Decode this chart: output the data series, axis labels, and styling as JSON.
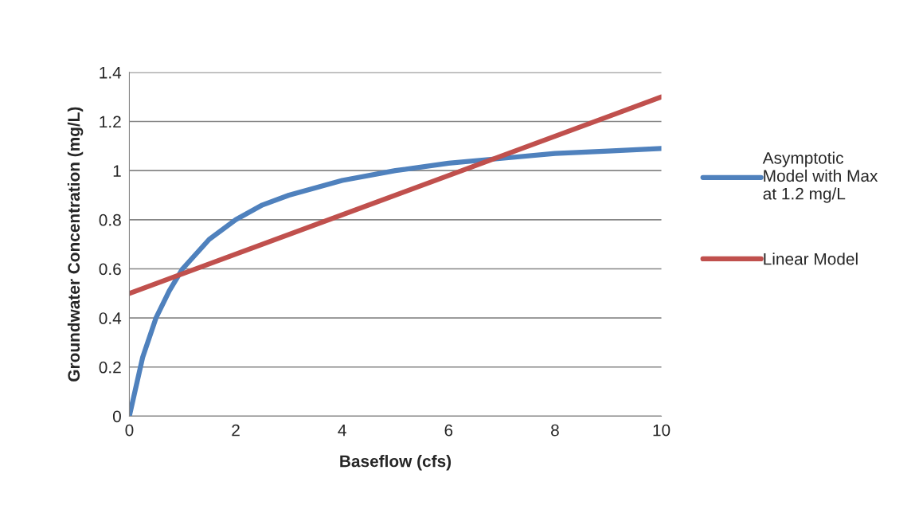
{
  "chart_data": {
    "type": "line",
    "xlabel": "Baseflow (cfs)",
    "ylabel": "Groundwater Concentration (mg/L)",
    "x": [
      0,
      0.25,
      0.5,
      0.75,
      1,
      1.5,
      2,
      2.5,
      3,
      4,
      5,
      6,
      7,
      8,
      9,
      10
    ],
    "series": [
      {
        "name": "Asymptotic\nModel with Max\nat 1.2 mg/L",
        "color": "#4f81bd",
        "values": [
          0,
          0.24,
          0.4,
          0.51,
          0.6,
          0.72,
          0.8,
          0.86,
          0.9,
          0.96,
          1.0,
          1.03,
          1.05,
          1.07,
          1.08,
          1.09
        ]
      },
      {
        "name": "Linear Model",
        "color": "#c0504d",
        "x": [
          0,
          10
        ],
        "values": [
          0.5,
          1.3
        ]
      }
    ],
    "xlim": [
      0,
      10
    ],
    "xticks": [
      0,
      2,
      4,
      6,
      8,
      10
    ],
    "ylim": [
      0,
      1.4
    ],
    "yticks": [
      0,
      0.2,
      0.4,
      0.6,
      0.8,
      1,
      1.2,
      1.4
    ],
    "grid": "y",
    "legend": "right",
    "marker": "none",
    "line_style": "solid"
  }
}
